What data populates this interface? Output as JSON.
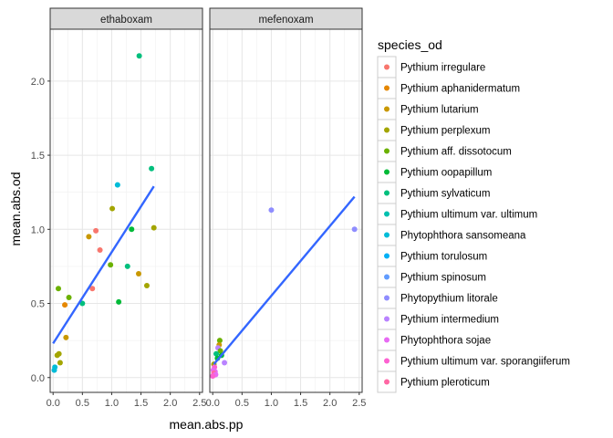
{
  "chart_data": {
    "type": "scatter",
    "xlabel": "mean.abs.pp",
    "ylabel": "mean.abs.od",
    "xlim": [
      -0.05,
      2.55
    ],
    "ylim": [
      -0.1,
      2.35
    ],
    "x_ticks": [
      0.0,
      0.5,
      1.0,
      1.5,
      2.0,
      2.5
    ],
    "x_tick_labels": [
      "0.0",
      "0.5",
      "1.0",
      "1.5",
      "2.0",
      "2.5"
    ],
    "y_ticks": [
      0.0,
      0.5,
      1.0,
      1.5,
      2.0
    ],
    "y_tick_labels": [
      "0.0",
      "0.5",
      "1.0",
      "1.5",
      "2.0"
    ],
    "grid": true,
    "legend": {
      "title": "species_od",
      "placement": "right",
      "entries": [
        {
          "label": "Pythium irregulare",
          "color": "#F8766D"
        },
        {
          "label": "Pythium aphanidermatum",
          "color": "#E58700"
        },
        {
          "label": "Pythium lutarium",
          "color": "#C99800"
        },
        {
          "label": "Pythium perplexum",
          "color": "#A3A500"
        },
        {
          "label": "Pythium aff. dissotocum",
          "color": "#6BB100"
        },
        {
          "label": "Pythium oopapillum",
          "color": "#00BA38"
        },
        {
          "label": "Pythium sylvaticum",
          "color": "#00BF7D"
        },
        {
          "label": "Pythium ultimum var. ultimum",
          "color": "#00C0AF"
        },
        {
          "label": "Phytophthora sansomeana",
          "color": "#00BCD8"
        },
        {
          "label": "Pythium torulosum",
          "color": "#00B0F6"
        },
        {
          "label": "Pythium spinosum",
          "color": "#619CFF"
        },
        {
          "label": "Phytopythium litorale",
          "color": "#8F8DFF"
        },
        {
          "label": "Pythium intermedium",
          "color": "#B983FF"
        },
        {
          "label": "Phytophthora sojae",
          "color": "#E76BF3"
        },
        {
          "label": "Pythium ultimum var. sporangiiferum",
          "color": "#FD61D1"
        },
        {
          "label": "Pythium pleroticum",
          "color": "#FF67A4"
        }
      ]
    },
    "facets": [
      {
        "label": "ethaboxam",
        "trend": {
          "color": "#3366FF",
          "x": [
            0.0,
            1.72
          ],
          "y": [
            0.23,
            1.29
          ]
        },
        "points": [
          {
            "x": 1.47,
            "y": 2.17,
            "color": "#00BF7D"
          },
          {
            "x": 1.68,
            "y": 1.41,
            "color": "#00BF7D"
          },
          {
            "x": 1.1,
            "y": 1.3,
            "color": "#00BCD8"
          },
          {
            "x": 1.01,
            "y": 1.14,
            "color": "#A3A500"
          },
          {
            "x": 1.34,
            "y": 1.0,
            "color": "#00BA38"
          },
          {
            "x": 1.72,
            "y": 1.01,
            "color": "#A3A500"
          },
          {
            "x": 0.73,
            "y": 0.99,
            "color": "#F8766D"
          },
          {
            "x": 0.61,
            "y": 0.95,
            "color": "#C99800"
          },
          {
            "x": 0.8,
            "y": 0.86,
            "color": "#F8766D"
          },
          {
            "x": 0.98,
            "y": 0.76,
            "color": "#6BB100"
          },
          {
            "x": 1.27,
            "y": 0.75,
            "color": "#00BF7D"
          },
          {
            "x": 1.46,
            "y": 0.7,
            "color": "#C99800"
          },
          {
            "x": 1.6,
            "y": 0.62,
            "color": "#A3A500"
          },
          {
            "x": 0.09,
            "y": 0.6,
            "color": "#6BB100"
          },
          {
            "x": 0.67,
            "y": 0.6,
            "color": "#F8766D"
          },
          {
            "x": 0.27,
            "y": 0.54,
            "color": "#6BB100"
          },
          {
            "x": 1.12,
            "y": 0.51,
            "color": "#00BA38"
          },
          {
            "x": 0.5,
            "y": 0.5,
            "color": "#00BF7D"
          },
          {
            "x": 0.2,
            "y": 0.49,
            "color": "#E58700"
          },
          {
            "x": 0.22,
            "y": 0.27,
            "color": "#C99800"
          },
          {
            "x": 0.1,
            "y": 0.16,
            "color": "#A3A500"
          },
          {
            "x": 0.07,
            "y": 0.15,
            "color": "#A3A500"
          },
          {
            "x": 0.12,
            "y": 0.1,
            "color": "#A3A500"
          },
          {
            "x": 0.03,
            "y": 0.07,
            "color": "#00BCD8"
          },
          {
            "x": 0.02,
            "y": 0.05,
            "color": "#00BCD8"
          }
        ]
      },
      {
        "label": "mefenoxam",
        "trend": {
          "color": "#3366FF",
          "x": [
            0.02,
            2.42
          ],
          "y": [
            0.09,
            1.22
          ]
        },
        "points": [
          {
            "x": 1.0,
            "y": 1.13,
            "color": "#8F8DFF"
          },
          {
            "x": 2.42,
            "y": 1.0,
            "color": "#8F8DFF"
          },
          {
            "x": 0.12,
            "y": 0.25,
            "color": "#6BB100"
          },
          {
            "x": 0.11,
            "y": 0.22,
            "color": "#C99800"
          },
          {
            "x": 0.09,
            "y": 0.2,
            "color": "#B983FF"
          },
          {
            "x": 0.13,
            "y": 0.18,
            "color": "#6BB100"
          },
          {
            "x": 0.06,
            "y": 0.16,
            "color": "#00BF7D"
          },
          {
            "x": 0.15,
            "y": 0.15,
            "color": "#00BA38"
          },
          {
            "x": 0.08,
            "y": 0.13,
            "color": "#00BA38"
          },
          {
            "x": 0.2,
            "y": 0.1,
            "color": "#B983FF"
          },
          {
            "x": 0.02,
            "y": 0.09,
            "color": "#A3A500"
          },
          {
            "x": 0.03,
            "y": 0.07,
            "color": "#FD61D1"
          },
          {
            "x": 0.01,
            "y": 0.05,
            "color": "#E76BF3"
          },
          {
            "x": 0.04,
            "y": 0.04,
            "color": "#E76BF3"
          },
          {
            "x": 0.02,
            "y": 0.03,
            "color": "#FF67A4"
          },
          {
            "x": 0.05,
            "y": 0.02,
            "color": "#E76BF3"
          },
          {
            "x": 0.0,
            "y": 0.01,
            "color": "#FD61D1"
          }
        ]
      }
    ]
  }
}
